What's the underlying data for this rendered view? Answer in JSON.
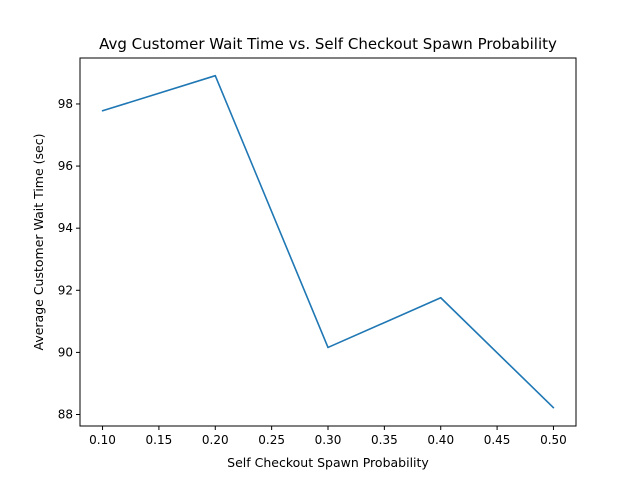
{
  "chart_data": {
    "type": "line",
    "title": "Avg Customer Wait Time vs. Self Checkout Spawn Probability",
    "xlabel": "Self Checkout Spawn Probability",
    "ylabel": "Average Customer Wait Time (sec)",
    "xlim": [
      0.08,
      0.52
    ],
    "ylim": [
      87.63,
      99.48
    ],
    "x_ticks": [
      0.1,
      0.15,
      0.2,
      0.25,
      0.3,
      0.35,
      0.4,
      0.45,
      0.5
    ],
    "x_tick_labels": [
      "0.10",
      "0.15",
      "0.20",
      "0.25",
      "0.30",
      "0.35",
      "0.40",
      "0.45",
      "0.50"
    ],
    "y_ticks": [
      88,
      90,
      92,
      94,
      96,
      98
    ],
    "y_tick_labels": [
      "88",
      "90",
      "92",
      "94",
      "96",
      "98"
    ],
    "grid": false,
    "legend": "none",
    "series": [
      {
        "color": "#1f77b4",
        "x": [
          0.1,
          0.2,
          0.3,
          0.4,
          0.5
        ],
        "y": [
          97.78,
          98.91,
          90.16,
          91.76,
          88.22
        ]
      }
    ]
  }
}
